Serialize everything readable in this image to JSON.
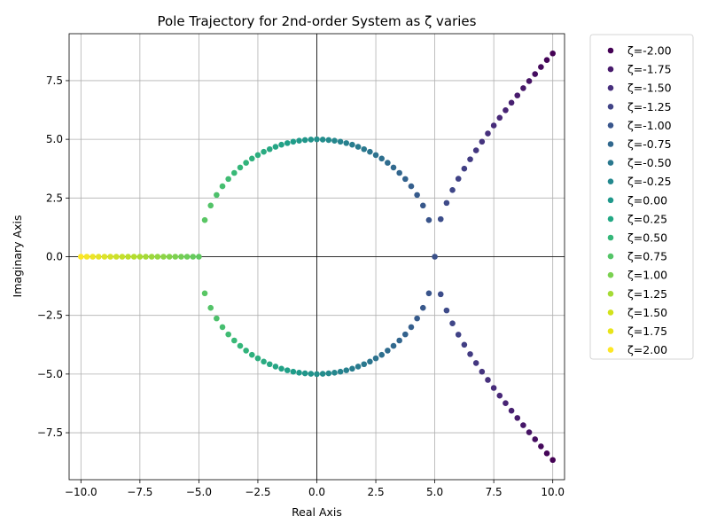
{
  "chart_data": {
    "type": "scatter",
    "title": "Pole Trajectory for 2nd-order System as ζ varies",
    "xlabel": "Real Axis",
    "ylabel": "Imaginary Axis",
    "xlim": [
      -10.5,
      10.5
    ],
    "ylim": [
      -9.5,
      9.5
    ],
    "xticks": [
      -10,
      -7.5,
      -5,
      -2.5,
      0,
      2.5,
      5,
      7.5,
      10
    ],
    "xtick_labels": [
      "−10.0",
      "−7.5",
      "−5.0",
      "−2.5",
      "0.0",
      "2.5",
      "5.0",
      "7.5",
      "10.0"
    ],
    "yticks": [
      -7.5,
      -5,
      -2.5,
      0,
      2.5,
      5,
      7.5
    ],
    "ytick_labels": [
      "−7.5",
      "−5.0",
      "−2.5",
      "0.0",
      "2.5",
      "5.0",
      "7.5"
    ],
    "grid": true,
    "reference_lines": "x=0 and y=0",
    "colormap": "viridis",
    "legend_placement": "outside right, top",
    "series": [
      {
        "name": "ζ=-2.00",
        "zeta": -2.0,
        "color": "#440154"
      },
      {
        "name": "ζ=-1.75",
        "zeta": -1.75,
        "color": "#481a6c"
      },
      {
        "name": "ζ=-1.50",
        "zeta": -1.5,
        "color": "#472f7d"
      },
      {
        "name": "ζ=-1.25",
        "zeta": -1.25,
        "color": "#414487"
      },
      {
        "name": "ζ=-1.00",
        "zeta": -1.0,
        "color": "#39568c"
      },
      {
        "name": "ζ=-0.75",
        "zeta": -0.75,
        "color": "#31688e"
      },
      {
        "name": "ζ=-0.50",
        "zeta": -0.5,
        "color": "#2a788e"
      },
      {
        "name": "ζ=-0.25",
        "zeta": -0.25,
        "color": "#23888e"
      },
      {
        "name": "ζ=0.00",
        "zeta": 0.0,
        "color": "#1f988b"
      },
      {
        "name": "ζ=0.25",
        "zeta": 0.25,
        "color": "#22a884"
      },
      {
        "name": "ζ=0.50",
        "zeta": 0.5,
        "color": "#35b779"
      },
      {
        "name": "ζ=0.75",
        "zeta": 0.75,
        "color": "#54c568"
      },
      {
        "name": "ζ=1.00",
        "zeta": 1.0,
        "color": "#7ad151"
      },
      {
        "name": "ζ=1.25",
        "zeta": 1.25,
        "color": "#a5db36"
      },
      {
        "name": "ζ=1.50",
        "zeta": 1.5,
        "color": "#d2e21b"
      },
      {
        "name": "ζ=1.75",
        "zeta": 1.75,
        "color": "#e8e419"
      },
      {
        "name": "ζ=2.00",
        "zeta": 2.0,
        "color": "#fde725"
      }
    ],
    "points": [
      {
        "x": -10.0,
        "y": 0.0
      },
      {
        "x": -9.75,
        "y": 0.0
      },
      {
        "x": -9.5,
        "y": 0.0
      },
      {
        "x": -9.25,
        "y": 0.0
      },
      {
        "x": -9.0,
        "y": 0.0
      },
      {
        "x": -8.75,
        "y": 0.0
      },
      {
        "x": -8.5,
        "y": 0.0
      },
      {
        "x": -8.25,
        "y": 0.0
      },
      {
        "x": -8.0,
        "y": 0.0
      },
      {
        "x": -7.75,
        "y": 0.0
      },
      {
        "x": -7.5,
        "y": 0.0
      },
      {
        "x": -7.25,
        "y": 0.0
      },
      {
        "x": -7.0,
        "y": 0.0
      },
      {
        "x": -6.75,
        "y": 0.0
      },
      {
        "x": -6.5,
        "y": 0.0
      },
      {
        "x": -6.25,
        "y": 0.0
      },
      {
        "x": -6.0,
        "y": 0.0
      },
      {
        "x": -5.75,
        "y": 0.0
      },
      {
        "x": -5.5,
        "y": 0.0
      },
      {
        "x": -5.25,
        "y": 0.0
      },
      {
        "x": -5.0,
        "y": 0.0
      },
      {
        "x": -4.75,
        "y": 1.56
      },
      {
        "x": -4.5,
        "y": 2.18
      },
      {
        "x": -4.25,
        "y": 2.63
      },
      {
        "x": -4.0,
        "y": 3.0
      },
      {
        "x": -3.75,
        "y": 3.31
      },
      {
        "x": -3.5,
        "y": 3.57
      },
      {
        "x": -3.25,
        "y": 3.8
      },
      {
        "x": -3.0,
        "y": 4.0
      },
      {
        "x": -2.75,
        "y": 4.18
      },
      {
        "x": -2.5,
        "y": 4.33
      },
      {
        "x": -2.25,
        "y": 4.47
      },
      {
        "x": -2.0,
        "y": 4.58
      },
      {
        "x": -1.75,
        "y": 4.68
      },
      {
        "x": -1.5,
        "y": 4.77
      },
      {
        "x": -1.25,
        "y": 4.84
      },
      {
        "x": -1.0,
        "y": 4.9
      },
      {
        "x": -0.75,
        "y": 4.94
      },
      {
        "x": -0.5,
        "y": 4.97
      },
      {
        "x": -0.25,
        "y": 4.99
      },
      {
        "x": 0.0,
        "y": 5.0
      },
      {
        "x": 0.25,
        "y": 4.99
      },
      {
        "x": 0.5,
        "y": 4.97
      },
      {
        "x": 0.75,
        "y": 4.94
      },
      {
        "x": 1.0,
        "y": 4.9
      },
      {
        "x": 1.25,
        "y": 4.84
      },
      {
        "x": 1.5,
        "y": 4.77
      },
      {
        "x": 1.75,
        "y": 4.68
      },
      {
        "x": 2.0,
        "y": 4.58
      },
      {
        "x": 2.25,
        "y": 4.47
      },
      {
        "x": 2.5,
        "y": 4.33
      },
      {
        "x": 2.75,
        "y": 4.18
      },
      {
        "x": 3.0,
        "y": 4.0
      },
      {
        "x": 3.25,
        "y": 3.8
      },
      {
        "x": 3.5,
        "y": 3.57
      },
      {
        "x": 3.75,
        "y": 3.31
      },
      {
        "x": 4.0,
        "y": 3.0
      },
      {
        "x": 4.25,
        "y": 2.63
      },
      {
        "x": 4.5,
        "y": 2.18
      },
      {
        "x": 4.75,
        "y": 1.56
      },
      {
        "x": 5.0,
        "y": 0.0
      },
      {
        "x": 5.25,
        "y": 1.6
      },
      {
        "x": 5.5,
        "y": 2.29
      },
      {
        "x": 5.75,
        "y": 2.84
      },
      {
        "x": 6.0,
        "y": 3.32
      },
      {
        "x": 6.25,
        "y": 3.75
      },
      {
        "x": 6.5,
        "y": 4.15
      },
      {
        "x": 6.75,
        "y": 4.53
      },
      {
        "x": 7.0,
        "y": 4.9
      },
      {
        "x": 7.25,
        "y": 5.25
      },
      {
        "x": 7.5,
        "y": 5.59
      },
      {
        "x": 7.75,
        "y": 5.92
      },
      {
        "x": 8.0,
        "y": 6.24
      },
      {
        "x": 8.25,
        "y": 6.56
      },
      {
        "x": 8.5,
        "y": 6.87
      },
      {
        "x": 8.75,
        "y": 7.18
      },
      {
        "x": 9.0,
        "y": 7.48
      },
      {
        "x": 9.25,
        "y": 7.78
      },
      {
        "x": 9.5,
        "y": 8.08
      },
      {
        "x": 9.75,
        "y": 8.38
      },
      {
        "x": 10.0,
        "y": 8.66
      },
      {
        "x": -4.75,
        "y": -1.56
      },
      {
        "x": -4.5,
        "y": -2.18
      },
      {
        "x": -4.25,
        "y": -2.63
      },
      {
        "x": -4.0,
        "y": -3.0
      },
      {
        "x": -3.75,
        "y": -3.31
      },
      {
        "x": -3.5,
        "y": -3.57
      },
      {
        "x": -3.25,
        "y": -3.8
      },
      {
        "x": -3.0,
        "y": -4.0
      },
      {
        "x": -2.75,
        "y": -4.18
      },
      {
        "x": -2.5,
        "y": -4.33
      },
      {
        "x": -2.25,
        "y": -4.47
      },
      {
        "x": -2.0,
        "y": -4.58
      },
      {
        "x": -1.75,
        "y": -4.68
      },
      {
        "x": -1.5,
        "y": -4.77
      },
      {
        "x": -1.25,
        "y": -4.84
      },
      {
        "x": -1.0,
        "y": -4.9
      },
      {
        "x": -0.75,
        "y": -4.94
      },
      {
        "x": -0.5,
        "y": -4.97
      },
      {
        "x": -0.25,
        "y": -4.99
      },
      {
        "x": 0.0,
        "y": -5.0
      },
      {
        "x": 0.25,
        "y": -4.99
      },
      {
        "x": 0.5,
        "y": -4.97
      },
      {
        "x": 0.75,
        "y": -4.94
      },
      {
        "x": 1.0,
        "y": -4.9
      },
      {
        "x": 1.25,
        "y": -4.84
      },
      {
        "x": 1.5,
        "y": -4.77
      },
      {
        "x": 1.75,
        "y": -4.68
      },
      {
        "x": 2.0,
        "y": -4.58
      },
      {
        "x": 2.25,
        "y": -4.47
      },
      {
        "x": 2.5,
        "y": -4.33
      },
      {
        "x": 2.75,
        "y": -4.18
      },
      {
        "x": 3.0,
        "y": -4.0
      },
      {
        "x": 3.25,
        "y": -3.8
      },
      {
        "x": 3.5,
        "y": -3.57
      },
      {
        "x": 3.75,
        "y": -3.31
      },
      {
        "x": 4.0,
        "y": -3.0
      },
      {
        "x": 4.25,
        "y": -2.63
      },
      {
        "x": 4.5,
        "y": -2.18
      },
      {
        "x": 4.75,
        "y": -1.56
      },
      {
        "x": 5.25,
        "y": -1.6
      },
      {
        "x": 5.5,
        "y": -2.29
      },
      {
        "x": 5.75,
        "y": -2.84
      },
      {
        "x": 6.0,
        "y": -3.32
      },
      {
        "x": 6.25,
        "y": -3.75
      },
      {
        "x": 6.5,
        "y": -4.15
      },
      {
        "x": 6.75,
        "y": -4.53
      },
      {
        "x": 7.0,
        "y": -4.9
      },
      {
        "x": 7.25,
        "y": -5.25
      },
      {
        "x": 7.5,
        "y": -5.59
      },
      {
        "x": 7.75,
        "y": -5.92
      },
      {
        "x": 8.0,
        "y": -6.24
      },
      {
        "x": 8.25,
        "y": -6.56
      },
      {
        "x": 8.5,
        "y": -6.87
      },
      {
        "x": 8.75,
        "y": -7.18
      },
      {
        "x": 9.0,
        "y": -7.48
      },
      {
        "x": 9.25,
        "y": -7.78
      },
      {
        "x": 9.5,
        "y": -8.08
      },
      {
        "x": 9.75,
        "y": -8.38
      },
      {
        "x": 10.0,
        "y": -8.66
      }
    ]
  }
}
